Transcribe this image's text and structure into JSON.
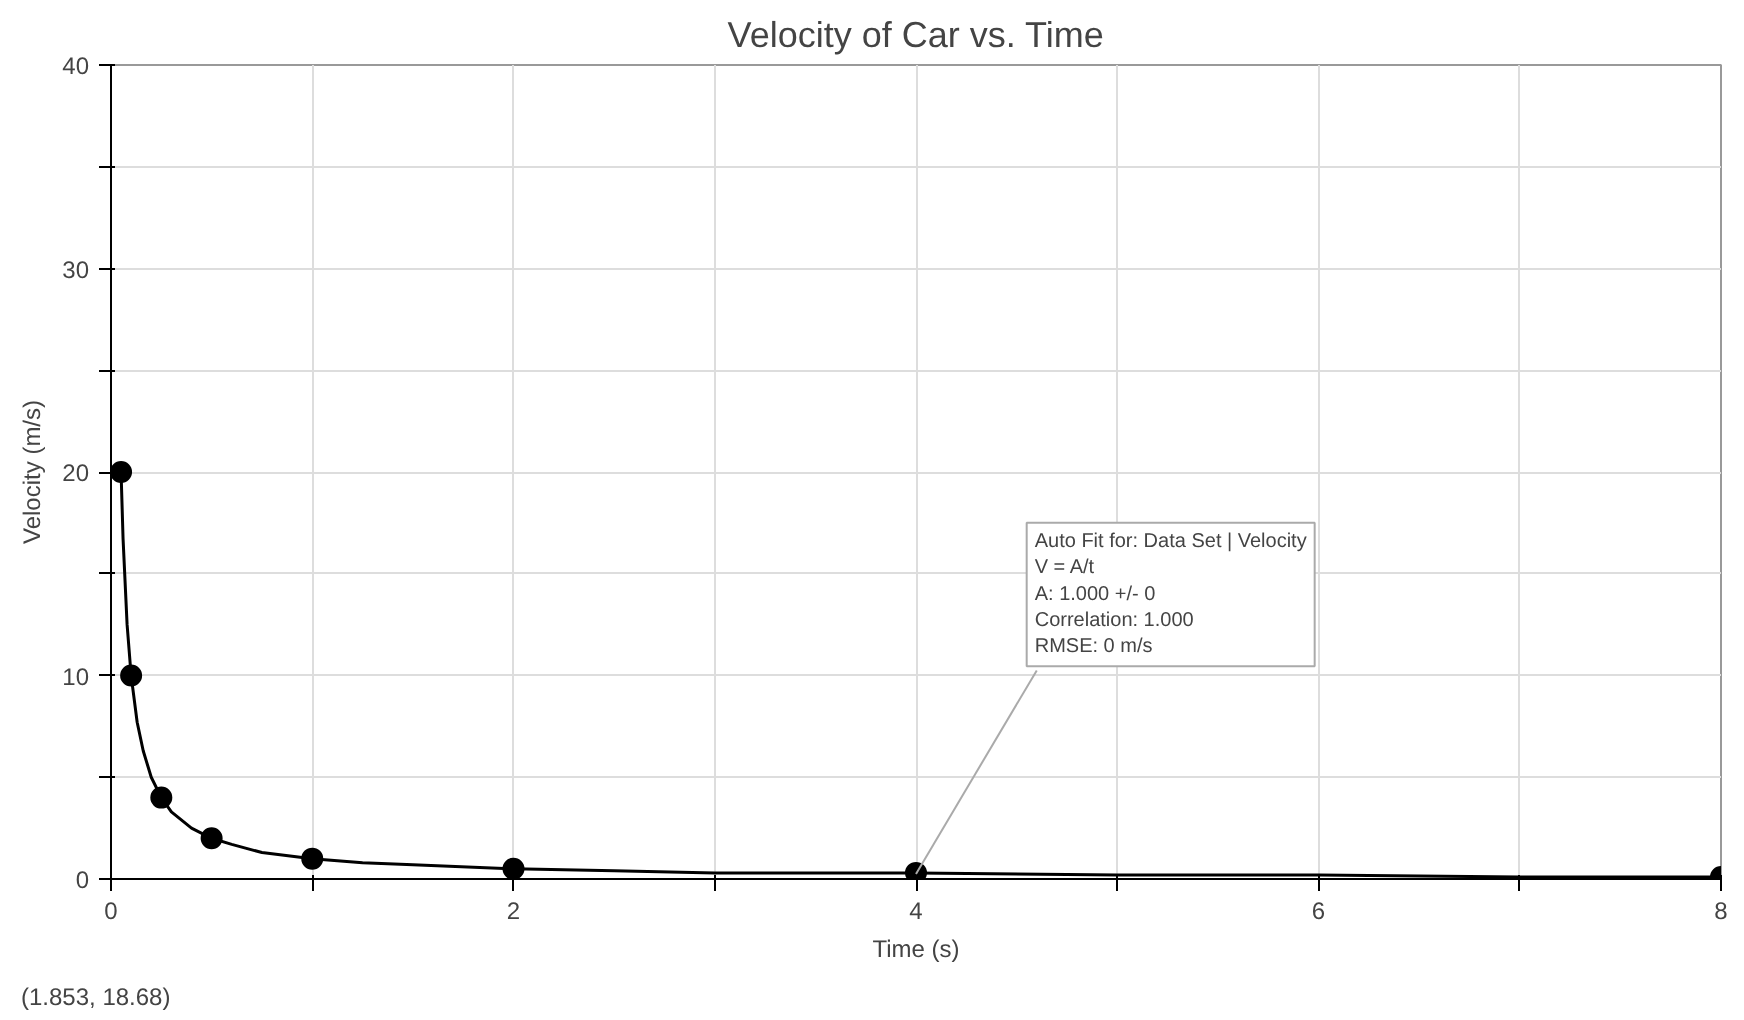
{
  "chart_data": {
    "type": "scatter",
    "title": "Velocity of Car vs. Time",
    "xlabel": "Time (s)",
    "ylabel": "Velocity (m/s)",
    "xlim": [
      0,
      8
    ],
    "ylim": [
      0,
      40
    ],
    "xticks": [
      0,
      {
        "value": 1,
        "label": null
      },
      2,
      {
        "value": 3,
        "label": null
      },
      4,
      {
        "value": 5,
        "label": null
      },
      6,
      {
        "value": 7,
        "label": null
      },
      8
    ],
    "yticks": [
      0,
      {
        "value": 5,
        "label": null
      },
      10,
      {
        "value": 15,
        "label": null
      },
      20,
      {
        "value": 25,
        "label": null
      },
      30,
      {
        "value": 35,
        "label": null
      },
      40
    ],
    "grid": true,
    "marker": "circle",
    "series": [
      {
        "color": "#000000",
        "x": [
          0.05,
          0.1,
          0.25,
          0.5,
          1,
          2,
          4,
          8
        ],
        "values": [
          20,
          10,
          4,
          2,
          1,
          0.5,
          0.3,
          0.1
        ]
      },
      {
        "type": "line",
        "color": "#000000",
        "marker": "none",
        "line_style": "solid",
        "x": [
          0.05,
          0.06,
          0.08,
          0.1,
          0.13,
          0.16,
          0.2,
          0.25,
          0.3,
          0.4,
          0.5,
          0.6,
          0.75,
          1,
          1.25,
          1.5,
          2,
          2.5,
          3,
          4,
          5,
          6,
          7,
          8
        ],
        "values": [
          20,
          16.7,
          12.5,
          10,
          7.7,
          6.3,
          5,
          4,
          3.3,
          2.5,
          2,
          1.7,
          1.3,
          1,
          0.8,
          0.7,
          0.5,
          0.4,
          0.3,
          0.3,
          0.2,
          0.2,
          0.1,
          0.1
        ]
      }
    ],
    "annotations": [
      {
        "text": "Auto Fit for: Data Set | Velocity\nV = A/t\nA: 1.000 +/- 0\nCorrelation: 1.000\nRMSE: 0 m/s",
        "x": 4,
        "y": 0.25
      },
      "(1.853, 18.68)"
    ]
  }
}
